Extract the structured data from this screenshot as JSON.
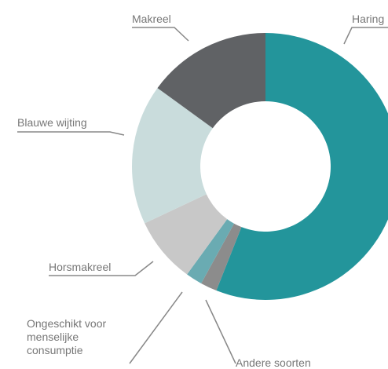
{
  "chart_data": {
    "type": "donut",
    "categories": [
      "Haring",
      "Andere soorten",
      "Ongeschikt voor menselijke consumptie",
      "Horsmakreel",
      "Blauwe wijting",
      "Makreel"
    ],
    "values": [
      56,
      2,
      2,
      8,
      17,
      15
    ],
    "colors": [
      "#23959b",
      "#8c8c8c",
      "#6aabb2",
      "#c8c8c8",
      "#c9dcdc",
      "#606265"
    ]
  }
}
